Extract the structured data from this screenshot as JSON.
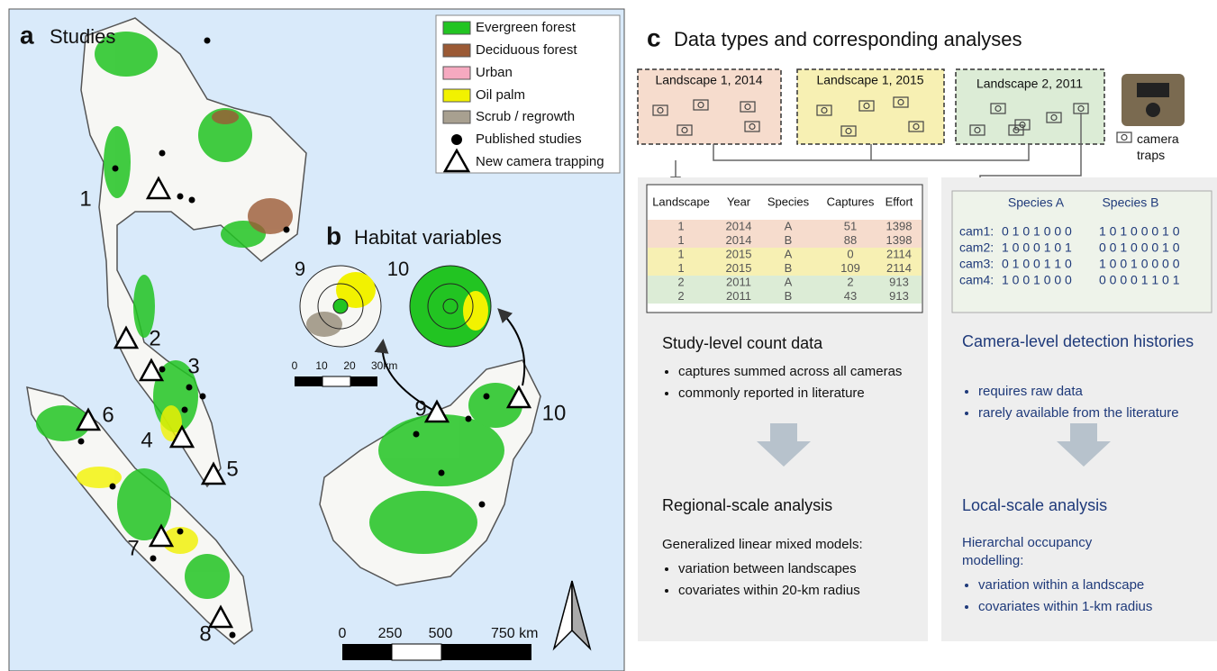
{
  "panel_a": {
    "letter": "a",
    "title": "Studies",
    "legend": [
      "Evergreen forest",
      "Deciduous forest",
      "Urban",
      "Oil palm",
      "Scrub / regrowth",
      "Published studies",
      "New camera trapping"
    ],
    "sites": [
      "1",
      "2",
      "3",
      "4",
      "5",
      "6",
      "7",
      "8",
      "9",
      "10"
    ],
    "scale": [
      "0",
      "250",
      "500",
      "750 km"
    ]
  },
  "panel_b": {
    "letter": "b",
    "title": "Habitat variables",
    "circles": [
      "9",
      "10"
    ],
    "scale": [
      "0",
      "10",
      "20",
      "30km"
    ]
  },
  "panel_c": {
    "letter": "c",
    "title": "Data types and corresponding analyses",
    "landscapes": [
      "Landscape 1, 2014",
      "Landscape 1, 2015",
      "Landscape 2, 2011"
    ],
    "camera_legend": "camera traps",
    "table": {
      "header": [
        "Landscape",
        "Year",
        "Species",
        "Captures",
        "Effort"
      ],
      "rows": [
        [
          1,
          2014,
          "A",
          51,
          1398
        ],
        [
          1,
          2014,
          "B",
          88,
          1398
        ],
        [
          1,
          2015,
          "A",
          0,
          2114
        ],
        [
          1,
          2015,
          "B",
          109,
          2114
        ],
        [
          2,
          2011,
          "A",
          2,
          913
        ],
        [
          2,
          2011,
          "B",
          43,
          913
        ]
      ]
    },
    "study_level": {
      "heading": "Study-level count data",
      "bullets": [
        "captures summed across all cameras",
        "commonly reported in literature"
      ]
    },
    "regional": {
      "heading": "Regional-scale analysis",
      "method": "Generalized linear mixed models:",
      "bullets": [
        "variation between landscapes",
        "covariates within 20-km radius"
      ]
    },
    "detection": {
      "header": [
        "Species A",
        "Species B"
      ],
      "rows": [
        [
          "cam1:",
          "0 1 0 1 0 0 0",
          "1 0 1 0 0 0 1 0"
        ],
        [
          "cam2:",
          "1 0 0 0 1 0 1",
          "0 0 1 0 0 0 1 0"
        ],
        [
          "cam3:",
          "0 1 0 0 1 1 0",
          "1 0 0 1 0 0 0 0"
        ],
        [
          "cam4:",
          "1 0 0 1 0 0 0",
          "0 0 0 0 1 1 0 1"
        ]
      ]
    },
    "camera_level": {
      "heading": "Camera-level detection histories",
      "bullets": [
        "requires raw data",
        "rarely available from the literature"
      ]
    },
    "local": {
      "heading": "Local-scale analysis",
      "method": "Hierarchal occupancy modelling:",
      "bullets": [
        "variation within a landscape",
        "covariates within 1-km radius"
      ]
    }
  }
}
